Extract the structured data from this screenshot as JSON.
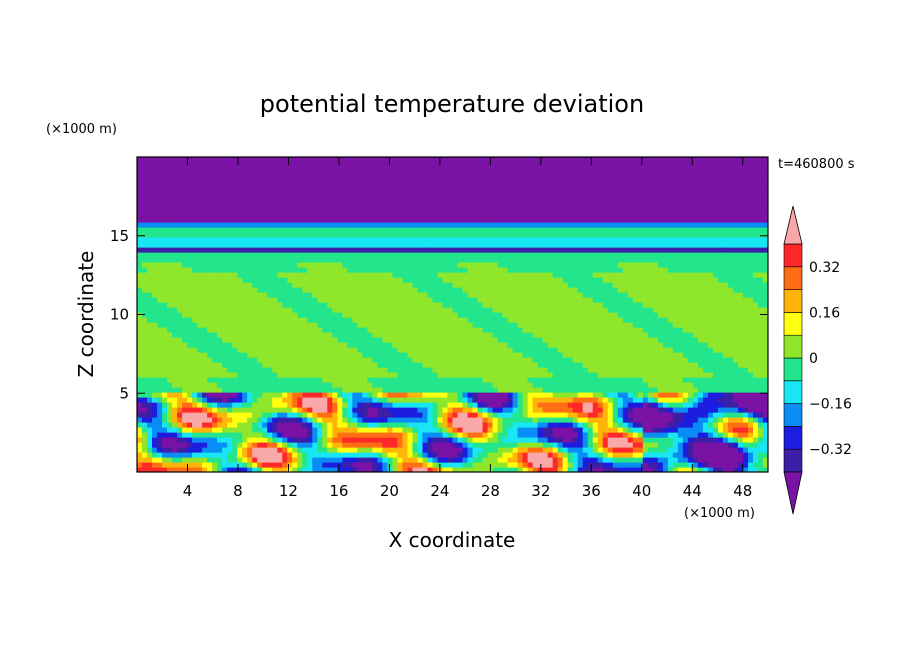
{
  "chart_data": {
    "type": "heatmap",
    "title": "potential temperature deviation",
    "xlabel": "X coordinate",
    "ylabel": "Z coordinate",
    "x_unit": "(×1000 m)",
    "y_unit": "(×1000 m)",
    "time_label": "t=460800 s",
    "xlim": [
      0,
      50
    ],
    "ylim": [
      0,
      20
    ],
    "x_ticks": [
      4,
      8,
      12,
      16,
      20,
      24,
      28,
      32,
      36,
      40,
      44,
      48
    ],
    "y_ticks": [
      5,
      10,
      15
    ],
    "colorbar": {
      "levels": [
        -0.4,
        -0.32,
        -0.24,
        -0.16,
        -0.08,
        0,
        0.08,
        0.16,
        0.24,
        0.32,
        0.4
      ],
      "tick_values": [
        -0.32,
        -0.16,
        0,
        0.16,
        0.32
      ],
      "tick_labels": [
        "−0.32",
        "−0.16",
        "0",
        "0.16",
        "0.32"
      ],
      "colors": [
        "#7a12a5",
        "#3c1fa6",
        "#1d1de0",
        "#0a8cf5",
        "#19e6f5",
        "#23e68c",
        "#8fe62a",
        "#ffff0f",
        "#ffb40a",
        "#ff6e14",
        "#ff2828",
        "#f8a8a8"
      ],
      "extend": "both"
    },
    "bands": [
      {
        "z": [
          17.5,
          20
        ],
        "value": -0.5
      },
      {
        "z": [
          16,
          17.5
        ],
        "value": -0.45
      },
      {
        "z": [
          15.5,
          16
        ],
        "value": -0.2
      },
      {
        "z": [
          15,
          15.5
        ],
        "value": -0.05
      },
      {
        "z": [
          14.2,
          15
        ],
        "value": -0.12
      },
      {
        "z": [
          13.9,
          14.2
        ],
        "value": -0.35
      },
      {
        "z": [
          13.4,
          13.9
        ],
        "value": -0.05
      },
      {
        "z": [
          12.7,
          13.4
        ],
        "value": -0.02
      },
      {
        "z": [
          6,
          12.7
        ],
        "value": 0.02
      },
      {
        "z": [
          5.2,
          6
        ],
        "value": -0.02
      },
      {
        "z": [
          0,
          5.2
        ],
        "value": "turbulent"
      }
    ]
  }
}
